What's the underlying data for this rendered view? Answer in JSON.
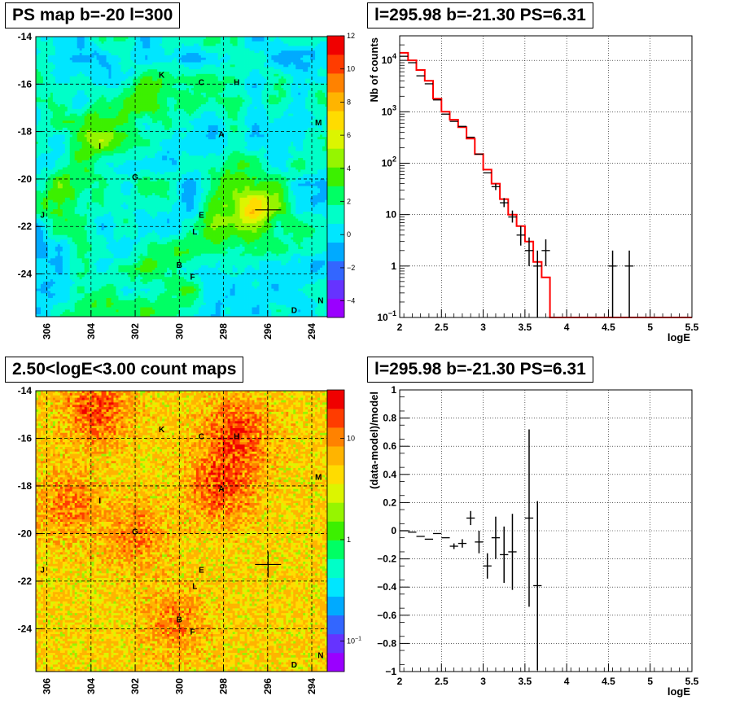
{
  "titles": {
    "map1": "PS map b=-20 l=300",
    "spec1": "l=295.98 b=-21.30 PS=6.31",
    "map2": "2.50<logE<3.00 count maps",
    "spec2": "l=295.98 b=-21.30 PS=6.31"
  },
  "colors": {
    "spectrum_model": "#ff0000",
    "data_points": "#000000",
    "grid": "#000000"
  },
  "chart_data": [
    {
      "type": "heatmap",
      "title": "PS map b=-20 l=300",
      "x_ticks": [
        "306",
        "304",
        "302",
        "300",
        "298",
        "296",
        "294"
      ],
      "y_ticks": [
        "-14",
        "-16",
        "-18",
        "-20",
        "-22",
        "-24"
      ],
      "xlim": [
        306.5,
        293.3
      ],
      "ylim": [
        -25.8,
        -14
      ],
      "colorbar": {
        "range": [
          -5,
          12
        ],
        "ticks": [
          "12",
          "10",
          "8",
          "6",
          "4",
          "2",
          "0",
          "−2",
          "−4"
        ]
      },
      "base_value": 0.8,
      "marker": {
        "l": 295.98,
        "b": -21.3
      },
      "sources": [
        {
          "name": "K",
          "l": 300.8,
          "b": -15.6
        },
        {
          "name": "C",
          "l": 299.0,
          "b": -15.9
        },
        {
          "name": "H",
          "l": 297.4,
          "b": -15.9
        },
        {
          "name": "M",
          "l": 293.7,
          "b": -17.6
        },
        {
          "name": "A",
          "l": 298.1,
          "b": -18.1
        },
        {
          "name": "I",
          "l": 303.6,
          "b": -18.6
        },
        {
          "name": "G",
          "l": 302.0,
          "b": -19.9
        },
        {
          "name": "J",
          "l": 306.2,
          "b": -21.5
        },
        {
          "name": "E",
          "l": 299.0,
          "b": -21.5
        },
        {
          "name": "L",
          "l": 299.3,
          "b": -22.2
        },
        {
          "name": "B",
          "l": 300.0,
          "b": -23.6
        },
        {
          "name": "F",
          "l": 299.4,
          "b": -24.1
        },
        {
          "name": "N",
          "l": 293.6,
          "b": -25.1
        },
        {
          "name": "D",
          "l": 294.8,
          "b": -25.5
        }
      ],
      "features": [
        {
          "l": 298.2,
          "b": -18.6,
          "value": -1.5
        },
        {
          "l": 301.3,
          "b": -16.7,
          "value": 3.0
        },
        {
          "l": 303.6,
          "b": -17.9,
          "value": 3.0
        },
        {
          "l": 297.4,
          "b": -21.9,
          "value": 3.5
        },
        {
          "l": 296.4,
          "b": -21.1,
          "value": 3.0
        },
        {
          "l": 305.0,
          "b": -20.6,
          "value": 2.0
        },
        {
          "l": 300.2,
          "b": -23.4,
          "value": 2.0
        },
        {
          "l": 297.6,
          "b": -19.9,
          "value": 1.5
        },
        {
          "l": 302.4,
          "b": -25.0,
          "value": 1.0
        }
      ]
    },
    {
      "type": "line",
      "title": "l=295.98 b=-21.30 PS=6.31",
      "xlabel": "logE",
      "ylabel": "Nb of counts",
      "xlim": [
        2,
        5.5
      ],
      "ylim": [
        0.1,
        30000
      ],
      "log_y": true,
      "grid": true,
      "x_ticks": [
        "2",
        "2.5",
        "3",
        "3.5",
        "4",
        "4.5",
        "5",
        "5.5"
      ],
      "y_ticks": [
        {
          "value": 10000,
          "label": "10",
          "exp": "4"
        },
        {
          "value": 1000,
          "label": "10",
          "exp": "3"
        },
        {
          "value": 100,
          "label": "10",
          "exp": "2"
        },
        {
          "value": 10,
          "label": "10",
          "exp": ""
        },
        {
          "value": 1,
          "label": "1",
          "exp": ""
        },
        {
          "value": 0.1,
          "label": "10",
          "exp": "−1"
        }
      ],
      "series": [
        {
          "x": [
            2.05,
            2.15,
            2.25,
            2.35,
            2.45,
            2.55,
            2.65,
            2.75,
            2.85,
            2.95,
            3.05,
            3.15,
            3.25,
            3.35,
            3.45,
            3.55,
            3.65,
            3.75,
            3.85,
            3.95,
            4.05,
            4.15,
            4.25,
            4.35,
            4.45,
            4.55,
            4.65,
            4.75,
            4.85,
            4.95,
            5.05,
            5.15,
            5.25,
            5.35,
            5.45
          ],
          "values": [
            14000,
            10000,
            6500,
            4000,
            1800,
            1000,
            700,
            500,
            300,
            150,
            75,
            40,
            20,
            10,
            6,
            3,
            1.2,
            0.6,
            0.1,
            0.1,
            0.1,
            0.1,
            0.1,
            0.1,
            0.1,
            0.1,
            0.1,
            0.1,
            0.1,
            0.1,
            0.1,
            0.1,
            0.1,
            0.1,
            0.1
          ]
        },
        {
          "x": [
            2.05,
            2.15,
            2.25,
            2.35,
            2.45,
            2.55,
            2.65,
            2.75,
            2.85,
            2.95,
            3.05,
            3.15,
            3.25,
            3.35,
            3.45,
            3.55,
            3.65,
            3.75,
            4.55,
            4.75
          ],
          "values": [
            12000,
            9000,
            5000,
            3500,
            1700,
            900,
            650,
            520,
            320,
            150,
            65,
            35,
            17,
            9,
            4,
            2,
            1,
            2,
            1,
            1
          ],
          "err_low": [
            0,
            0,
            0,
            0,
            0,
            0,
            0,
            0,
            0,
            0,
            0,
            5,
            3,
            2,
            1.5,
            1.0,
            1.0,
            1.0,
            1.0,
            1.0
          ],
          "err_high": [
            0,
            0,
            0,
            0,
            0,
            0,
            0,
            0,
            0,
            0,
            0,
            5,
            4,
            3,
            2.0,
            1.6,
            1.0,
            1.3,
            1.0,
            1.0
          ]
        }
      ]
    },
    {
      "type": "heatmap",
      "title": "2.50<logE<3.00 count maps",
      "x_ticks": [
        "306",
        "304",
        "302",
        "300",
        "298",
        "296",
        "294"
      ],
      "y_ticks": [
        "-14",
        "-16",
        "-18",
        "-20",
        "-22",
        "-24"
      ],
      "xlim": [
        306.5,
        293.3
      ],
      "ylim": [
        -25.8,
        -14
      ],
      "colorbar": {
        "log": true,
        "range": [
          0.05,
          30
        ],
        "ticks": [
          {
            "value": 10,
            "label": "10",
            "exp": ""
          },
          {
            "value": 1,
            "label": "1",
            "exp": ""
          },
          {
            "value": 0.1,
            "label": "10",
            "exp": "−1"
          }
        ]
      },
      "base_value": 5,
      "marker": {
        "l": 295.98,
        "b": -21.3
      },
      "sources": [
        {
          "name": "K",
          "l": 300.8,
          "b": -15.6
        },
        {
          "name": "C",
          "l": 299.0,
          "b": -15.9
        },
        {
          "name": "H",
          "l": 297.4,
          "b": -15.9
        },
        {
          "name": "M",
          "l": 293.7,
          "b": -17.6
        },
        {
          "name": "A",
          "l": 298.1,
          "b": -18.1
        },
        {
          "name": "I",
          "l": 303.6,
          "b": -18.6
        },
        {
          "name": "G",
          "l": 302.0,
          "b": -19.9
        },
        {
          "name": "J",
          "l": 306.2,
          "b": -21.5
        },
        {
          "name": "E",
          "l": 299.0,
          "b": -21.5
        },
        {
          "name": "L",
          "l": 299.3,
          "b": -22.2
        },
        {
          "name": "B",
          "l": 300.0,
          "b": -23.6
        },
        {
          "name": "F",
          "l": 299.4,
          "b": -24.1
        },
        {
          "name": "N",
          "l": 293.6,
          "b": -25.1
        },
        {
          "name": "D",
          "l": 294.8,
          "b": -25.5
        }
      ],
      "features": [
        {
          "l": 297.4,
          "b": -15.9,
          "value": 20
        },
        {
          "l": 303.7,
          "b": -14.8,
          "value": 18
        },
        {
          "l": 298.1,
          "b": -18.0,
          "value": 18
        },
        {
          "l": 305.0,
          "b": -18.8,
          "value": 10
        },
        {
          "l": 302.0,
          "b": -20.1,
          "value": 9
        },
        {
          "l": 300.2,
          "b": -23.7,
          "value": 8
        }
      ]
    },
    {
      "type": "scatter",
      "title": "l=295.98 b=-21.30 PS=6.31",
      "xlabel": "logE",
      "ylabel": "(data-model)/model",
      "xlim": [
        2,
        5.5
      ],
      "ylim": [
        -1,
        1
      ],
      "grid": true,
      "x_ticks": [
        "2",
        "2.5",
        "3",
        "3.5",
        "4",
        "4.5",
        "5",
        "5.5"
      ],
      "y_ticks": [
        "1",
        "0.8",
        "0.6",
        "0.4",
        "0.2",
        "0",
        "−0.2",
        "−0.4",
        "−0.6",
        "−0.8",
        "−1"
      ],
      "series": [
        {
          "x": [
            2.05,
            2.15,
            2.25,
            2.35,
            2.45,
            2.55,
            2.65,
            2.75,
            2.85,
            2.95,
            3.05,
            3.15,
            3.25,
            3.35,
            3.55,
            3.65
          ],
          "values": [
            0.0,
            -0.01,
            -0.04,
            -0.06,
            -0.02,
            -0.05,
            -0.11,
            -0.09,
            0.09,
            -0.08,
            -0.25,
            -0.05,
            -0.17,
            -0.15,
            0.09,
            -0.39
          ],
          "err": [
            0.0,
            0.0,
            0.0,
            0.0,
            0.0,
            0.0,
            0.02,
            0.03,
            0.05,
            0.08,
            0.09,
            0.15,
            0.2,
            0.27,
            0.63,
            0.6
          ]
        }
      ]
    }
  ]
}
